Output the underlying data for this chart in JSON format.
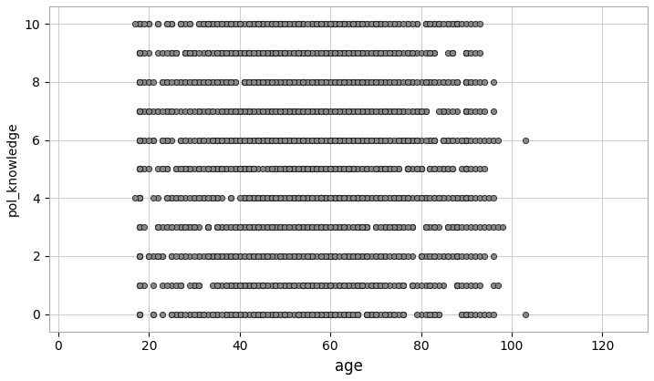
{
  "title": "",
  "xlabel": "age",
  "ylabel": "pol_knowledge",
  "xlim": [
    -2,
    130
  ],
  "ylim": [
    -0.6,
    10.6
  ],
  "xticks": [
    0,
    20,
    40,
    60,
    80,
    100,
    120
  ],
  "yticks": [
    0,
    2,
    4,
    6,
    8,
    10
  ],
  "marker_color": "#888888",
  "marker_edge_color": "#222222",
  "marker_size": 4.5,
  "marker_edge_width": 0.6,
  "background_color": "#ffffff",
  "grid_color": "#cccccc",
  "xlabel_fontsize": 12,
  "ylabel_fontsize": 10,
  "tick_fontsize": 10,
  "spine_color": "#aaaaaa"
}
